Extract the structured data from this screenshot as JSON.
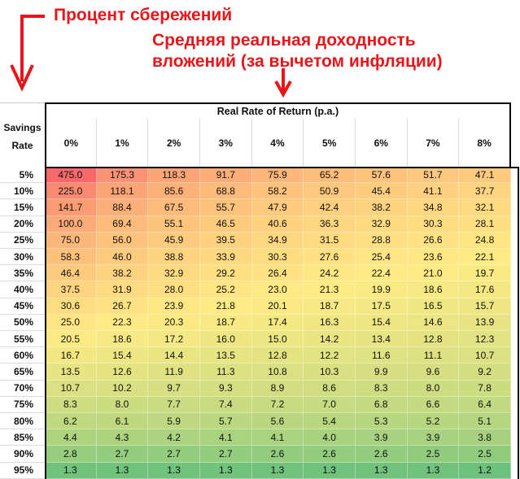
{
  "annotations": {
    "savings_label": "Процент сбережений",
    "return_label_line1": "Средняя реальная доходность",
    "return_label_line2": "вложений (за вычетом инфляции)",
    "color": "#e8161b"
  },
  "chart_data": {
    "type": "heatmap",
    "title": "Real Rate of Return (p.a.)",
    "row_header": [
      "Savings",
      "Rate"
    ],
    "columns": [
      "0%",
      "1%",
      "2%",
      "3%",
      "4%",
      "5%",
      "6%",
      "7%",
      "8%"
    ],
    "rows": [
      "5%",
      "10%",
      "15%",
      "20%",
      "25%",
      "30%",
      "35%",
      "40%",
      "45%",
      "50%",
      "55%",
      "60%",
      "65%",
      "70%",
      "75%",
      "80%",
      "85%",
      "90%",
      "95%"
    ],
    "values": [
      [
        "475.0",
        "175.3",
        "118.3",
        "91.7",
        "75.9",
        "65.2",
        "57.6",
        "51.7",
        "47.1"
      ],
      [
        "225.0",
        "118.1",
        "85.6",
        "68.8",
        "58.2",
        "50.9",
        "45.4",
        "41.1",
        "37.7"
      ],
      [
        "141.7",
        "88.4",
        "67.5",
        "55.7",
        "47.9",
        "42.4",
        "38.2",
        "34.8",
        "32.1"
      ],
      [
        "100.0",
        "69.4",
        "55.1",
        "46.5",
        "40.6",
        "36.3",
        "32.9",
        "30.3",
        "28.1"
      ],
      [
        "75.0",
        "56.0",
        "45.9",
        "39.5",
        "34.9",
        "31.5",
        "28.8",
        "26.6",
        "24.8"
      ],
      [
        "58.3",
        "46.0",
        "38.8",
        "33.9",
        "30.3",
        "27.6",
        "25.4",
        "23.6",
        "22.1"
      ],
      [
        "46.4",
        "38.2",
        "32.9",
        "29.2",
        "26.4",
        "24.2",
        "22.4",
        "21.0",
        "19.7"
      ],
      [
        "37.5",
        "31.9",
        "28.0",
        "25.2",
        "23.0",
        "21.3",
        "19.9",
        "18.6",
        "17.6"
      ],
      [
        "30.6",
        "26.7",
        "23.9",
        "21.8",
        "20.1",
        "18.7",
        "17.5",
        "16.5",
        "15.7"
      ],
      [
        "25.0",
        "22.3",
        "20.3",
        "18.7",
        "17.4",
        "16.3",
        "15.4",
        "14.6",
        "13.9"
      ],
      [
        "20.5",
        "18.6",
        "17.2",
        "16.0",
        "15.0",
        "14.2",
        "13.4",
        "12.8",
        "12.3"
      ],
      [
        "16.7",
        "15.4",
        "14.4",
        "13.5",
        "12.8",
        "12.2",
        "11.6",
        "11.1",
        "10.7"
      ],
      [
        "13.5",
        "12.6",
        "11.9",
        "11.3",
        "10.8",
        "10.3",
        "9.9",
        "9.6",
        "9.2"
      ],
      [
        "10.7",
        "10.2",
        "9.7",
        "9.3",
        "8.9",
        "8.6",
        "8.3",
        "8.0",
        "7.8"
      ],
      [
        "8.3",
        "8.0",
        "7.7",
        "7.4",
        "7.2",
        "7.0",
        "6.8",
        "6.6",
        "6.4"
      ],
      [
        "6.2",
        "6.1",
        "5.9",
        "5.7",
        "5.6",
        "5.4",
        "5.3",
        "5.2",
        "5.1"
      ],
      [
        "4.4",
        "4.3",
        "4.2",
        "4.1",
        "4.1",
        "4.0",
        "3.9",
        "3.9",
        "3.8"
      ],
      [
        "2.8",
        "2.7",
        "2.7",
        "2.7",
        "2.6",
        "2.6",
        "2.6",
        "2.5",
        "2.5"
      ],
      [
        "1.3",
        "1.3",
        "1.3",
        "1.3",
        "1.3",
        "1.3",
        "1.3",
        "1.3",
        "1.2"
      ]
    ],
    "color_scale": {
      "low": "#63be7b",
      "mid": "#ffeb84",
      "high": "#f8696b"
    }
  }
}
